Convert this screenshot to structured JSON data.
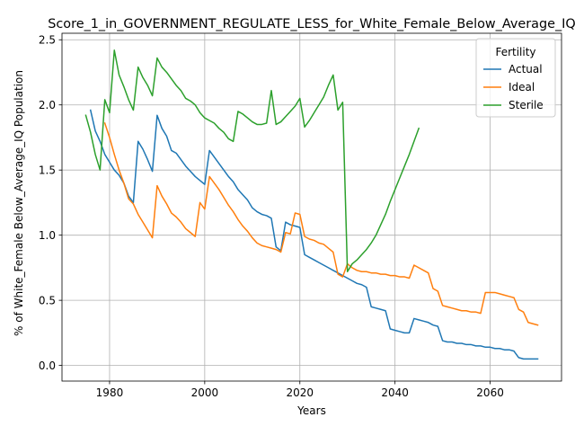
{
  "chart_data": {
    "type": "line",
    "title": "Score_1_in_GOVERNMENT_REGULATE_LESS_for_White_Female_Below_Average_IQ",
    "xlabel": "Years",
    "ylabel": "% of White_Female Below_Average_IQ Population",
    "xlim": [
      1970,
      2075
    ],
    "ylim": [
      -0.12,
      2.55
    ],
    "xticks": [
      1980,
      2000,
      2020,
      2040,
      2060
    ],
    "yticks": [
      0.0,
      0.5,
      1.0,
      1.5,
      2.0,
      2.5
    ],
    "xtick_labels": [
      "1980",
      "2000",
      "2020",
      "2040",
      "2060"
    ],
    "ytick_labels": [
      "0.0",
      "0.5",
      "1.0",
      "1.5",
      "2.0",
      "2.5"
    ],
    "grid": true,
    "legend": {
      "title": "Fertility",
      "placement": "top-right"
    },
    "series": [
      {
        "name": "Actual",
        "color": "#1f77b4",
        "points": [
          [
            1976,
            1.96
          ],
          [
            1977,
            1.8
          ],
          [
            1978,
            1.72
          ],
          [
            1979,
            1.62
          ],
          [
            1980,
            1.56
          ],
          [
            1981,
            1.5
          ],
          [
            1982,
            1.46
          ],
          [
            1983,
            1.4
          ],
          [
            1984,
            1.3
          ],
          [
            1985,
            1.25
          ],
          [
            1986,
            1.72
          ],
          [
            1987,
            1.66
          ],
          [
            1988,
            1.58
          ],
          [
            1989,
            1.49
          ],
          [
            1990,
            1.92
          ],
          [
            1991,
            1.82
          ],
          [
            1992,
            1.76
          ],
          [
            1993,
            1.65
          ],
          [
            1994,
            1.63
          ],
          [
            1995,
            1.58
          ],
          [
            1996,
            1.53
          ],
          [
            1997,
            1.49
          ],
          [
            1998,
            1.45
          ],
          [
            1999,
            1.42
          ],
          [
            2000,
            1.39
          ],
          [
            2001,
            1.65
          ],
          [
            2002,
            1.6
          ],
          [
            2003,
            1.55
          ],
          [
            2004,
            1.5
          ],
          [
            2005,
            1.45
          ],
          [
            2006,
            1.41
          ],
          [
            2007,
            1.35
          ],
          [
            2008,
            1.31
          ],
          [
            2009,
            1.27
          ],
          [
            2010,
            1.21
          ],
          [
            2011,
            1.18
          ],
          [
            2012,
            1.16
          ],
          [
            2013,
            1.15
          ],
          [
            2014,
            1.13
          ],
          [
            2015,
            0.91
          ],
          [
            2016,
            0.88
          ],
          [
            2017,
            1.1
          ],
          [
            2018,
            1.08
          ],
          [
            2019,
            1.07
          ],
          [
            2020,
            1.06
          ],
          [
            2021,
            0.85
          ],
          [
            2022,
            0.83
          ],
          [
            2023,
            0.81
          ],
          [
            2024,
            0.79
          ],
          [
            2025,
            0.77
          ],
          [
            2026,
            0.75
          ],
          [
            2027,
            0.73
          ],
          [
            2028,
            0.71
          ],
          [
            2029,
            0.69
          ],
          [
            2030,
            0.67
          ],
          [
            2031,
            0.65
          ],
          [
            2032,
            0.63
          ],
          [
            2033,
            0.62
          ],
          [
            2034,
            0.6
          ],
          [
            2035,
            0.45
          ],
          [
            2036,
            0.44
          ],
          [
            2037,
            0.43
          ],
          [
            2038,
            0.42
          ],
          [
            2039,
            0.28
          ],
          [
            2040,
            0.27
          ],
          [
            2041,
            0.26
          ],
          [
            2042,
            0.25
          ],
          [
            2043,
            0.25
          ],
          [
            2044,
            0.36
          ],
          [
            2045,
            0.35
          ],
          [
            2046,
            0.34
          ],
          [
            2047,
            0.33
          ],
          [
            2048,
            0.31
          ],
          [
            2049,
            0.3
          ],
          [
            2050,
            0.19
          ],
          [
            2051,
            0.18
          ],
          [
            2052,
            0.18
          ],
          [
            2053,
            0.17
          ],
          [
            2054,
            0.17
          ],
          [
            2055,
            0.16
          ],
          [
            2056,
            0.16
          ],
          [
            2057,
            0.15
          ],
          [
            2058,
            0.15
          ],
          [
            2059,
            0.14
          ],
          [
            2060,
            0.14
          ],
          [
            2061,
            0.13
          ],
          [
            2062,
            0.13
          ],
          [
            2063,
            0.12
          ],
          [
            2064,
            0.12
          ],
          [
            2065,
            0.11
          ],
          [
            2066,
            0.06
          ],
          [
            2067,
            0.05
          ],
          [
            2068,
            0.05
          ],
          [
            2069,
            0.05
          ],
          [
            2070,
            0.05
          ]
        ]
      },
      {
        "name": "Ideal",
        "color": "#ff7f0e",
        "points": [
          [
            1979,
            1.86
          ],
          [
            1980,
            1.75
          ],
          [
            1981,
            1.62
          ],
          [
            1982,
            1.5
          ],
          [
            1983,
            1.4
          ],
          [
            1984,
            1.28
          ],
          [
            1985,
            1.24
          ],
          [
            1986,
            1.16
          ],
          [
            1987,
            1.1
          ],
          [
            1988,
            1.04
          ],
          [
            1989,
            0.98
          ],
          [
            1990,
            1.38
          ],
          [
            1991,
            1.3
          ],
          [
            1992,
            1.24
          ],
          [
            1993,
            1.17
          ],
          [
            1994,
            1.14
          ],
          [
            1995,
            1.1
          ],
          [
            1996,
            1.05
          ],
          [
            1997,
            1.02
          ],
          [
            1998,
            0.99
          ],
          [
            1999,
            1.25
          ],
          [
            2000,
            1.2
          ],
          [
            2001,
            1.45
          ],
          [
            2002,
            1.4
          ],
          [
            2003,
            1.35
          ],
          [
            2004,
            1.29
          ],
          [
            2005,
            1.23
          ],
          [
            2006,
            1.18
          ],
          [
            2007,
            1.12
          ],
          [
            2008,
            1.07
          ],
          [
            2009,
            1.03
          ],
          [
            2010,
            0.98
          ],
          [
            2011,
            0.94
          ],
          [
            2012,
            0.92
          ],
          [
            2013,
            0.91
          ],
          [
            2014,
            0.9
          ],
          [
            2015,
            0.89
          ],
          [
            2016,
            0.87
          ],
          [
            2017,
            1.02
          ],
          [
            2018,
            1.01
          ],
          [
            2019,
            1.17
          ],
          [
            2020,
            1.16
          ],
          [
            2021,
            0.99
          ],
          [
            2022,
            0.97
          ],
          [
            2023,
            0.96
          ],
          [
            2024,
            0.94
          ],
          [
            2025,
            0.93
          ],
          [
            2026,
            0.9
          ],
          [
            2027,
            0.87
          ],
          [
            2028,
            0.7
          ],
          [
            2029,
            0.68
          ],
          [
            2030,
            0.78
          ],
          [
            2031,
            0.75
          ],
          [
            2032,
            0.73
          ],
          [
            2033,
            0.72
          ],
          [
            2034,
            0.72
          ],
          [
            2035,
            0.71
          ],
          [
            2036,
            0.71
          ],
          [
            2037,
            0.7
          ],
          [
            2038,
            0.7
          ],
          [
            2039,
            0.69
          ],
          [
            2040,
            0.69
          ],
          [
            2041,
            0.68
          ],
          [
            2042,
            0.68
          ],
          [
            2043,
            0.67
          ],
          [
            2044,
            0.77
          ],
          [
            2045,
            0.75
          ],
          [
            2046,
            0.73
          ],
          [
            2047,
            0.71
          ],
          [
            2048,
            0.59
          ],
          [
            2049,
            0.57
          ],
          [
            2050,
            0.46
          ],
          [
            2051,
            0.45
          ],
          [
            2052,
            0.44
          ],
          [
            2053,
            0.43
          ],
          [
            2054,
            0.42
          ],
          [
            2055,
            0.42
          ],
          [
            2056,
            0.41
          ],
          [
            2057,
            0.41
          ],
          [
            2058,
            0.4
          ],
          [
            2059,
            0.56
          ],
          [
            2060,
            0.56
          ],
          [
            2061,
            0.56
          ],
          [
            2062,
            0.55
          ],
          [
            2063,
            0.54
          ],
          [
            2064,
            0.53
          ],
          [
            2065,
            0.52
          ],
          [
            2066,
            0.43
          ],
          [
            2067,
            0.41
          ],
          [
            2068,
            0.33
          ],
          [
            2069,
            0.32
          ],
          [
            2070,
            0.31
          ]
        ]
      },
      {
        "name": "Sterile",
        "color": "#2ca02c",
        "points": [
          [
            1975,
            1.92
          ],
          [
            1976,
            1.79
          ],
          [
            1977,
            1.62
          ],
          [
            1978,
            1.5
          ],
          [
            1979,
            2.04
          ],
          [
            1980,
            1.94
          ],
          [
            1981,
            2.42
          ],
          [
            1982,
            2.23
          ],
          [
            1983,
            2.14
          ],
          [
            1984,
            2.04
          ],
          [
            1985,
            1.96
          ],
          [
            1986,
            2.29
          ],
          [
            1987,
            2.21
          ],
          [
            1988,
            2.15
          ],
          [
            1989,
            2.07
          ],
          [
            1990,
            2.36
          ],
          [
            1991,
            2.29
          ],
          [
            1992,
            2.25
          ],
          [
            1993,
            2.2
          ],
          [
            1994,
            2.15
          ],
          [
            1995,
            2.11
          ],
          [
            1996,
            2.05
          ],
          [
            1997,
            2.03
          ],
          [
            1998,
            2.0
          ],
          [
            1999,
            1.94
          ],
          [
            2000,
            1.9
          ],
          [
            2001,
            1.88
          ],
          [
            2002,
            1.86
          ],
          [
            2003,
            1.82
          ],
          [
            2004,
            1.79
          ],
          [
            2005,
            1.74
          ],
          [
            2006,
            1.72
          ],
          [
            2007,
            1.95
          ],
          [
            2008,
            1.93
          ],
          [
            2009,
            1.9
          ],
          [
            2010,
            1.87
          ],
          [
            2011,
            1.85
          ],
          [
            2012,
            1.85
          ],
          [
            2013,
            1.86
          ],
          [
            2014,
            2.11
          ],
          [
            2015,
            1.85
          ],
          [
            2016,
            1.87
          ],
          [
            2017,
            1.91
          ],
          [
            2018,
            1.95
          ],
          [
            2019,
            1.99
          ],
          [
            2020,
            2.05
          ],
          [
            2021,
            1.83
          ],
          [
            2022,
            1.88
          ],
          [
            2023,
            1.94
          ],
          [
            2024,
            2.0
          ],
          [
            2025,
            2.06
          ],
          [
            2026,
            2.15
          ],
          [
            2027,
            2.23
          ],
          [
            2028,
            1.96
          ],
          [
            2029,
            2.02
          ],
          [
            2030,
            0.72
          ],
          [
            2031,
            0.78
          ],
          [
            2032,
            0.81
          ],
          [
            2033,
            0.85
          ],
          [
            2034,
            0.89
          ],
          [
            2035,
            0.94
          ],
          [
            2036,
            1.0
          ],
          [
            2037,
            1.08
          ],
          [
            2038,
            1.16
          ],
          [
            2039,
            1.26
          ],
          [
            2040,
            1.35
          ],
          [
            2041,
            1.44
          ],
          [
            2042,
            1.53
          ],
          [
            2043,
            1.62
          ],
          [
            2044,
            1.72
          ],
          [
            2045,
            1.82
          ]
        ]
      }
    ]
  }
}
